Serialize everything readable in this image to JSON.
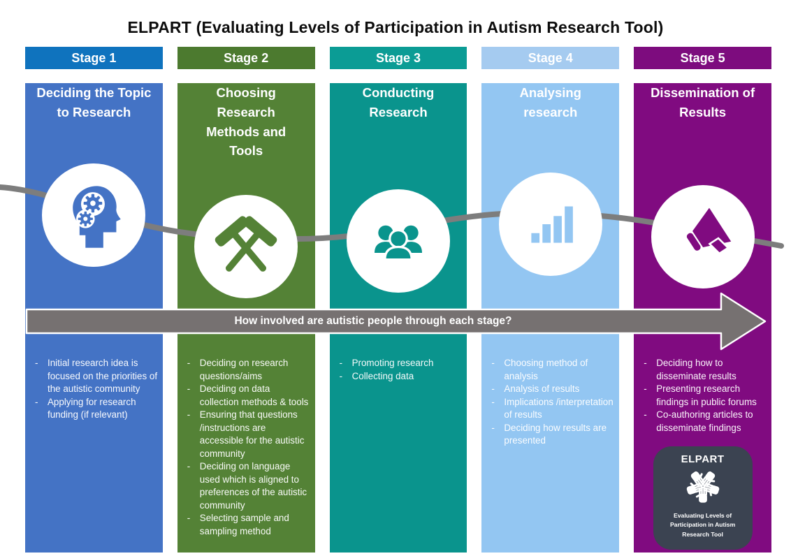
{
  "title": "ELPART (Evaluating Levels of Participation in Autism Research Tool)",
  "arrow": {
    "label": "How involved are autistic people through each stage?"
  },
  "stages": [
    {
      "label": "Stage 1",
      "title": "Deciding the Topic to Research",
      "icon": "head-gears-icon",
      "bullets": [
        "Initial research idea is focused on the priorities of the autistic community",
        "Applying for research funding (if relevant)"
      ]
    },
    {
      "label": "Stage 2",
      "title": "Choosing Research Methods and Tools",
      "icon": "crossed-hammers-icon",
      "bullets": [
        "Deciding on research questions/aims",
        "Deciding on data collection methods & tools",
        "Ensuring that questions /instructions are accessible for the autistic community",
        "Deciding on language used which is aligned to preferences of the autistic community",
        "Selecting sample and sampling method"
      ]
    },
    {
      "label": "Stage 3",
      "title": "Conducting Research",
      "icon": "people-group-icon",
      "bullets": [
        "Promoting research",
        "Collecting data"
      ]
    },
    {
      "label": "Stage 4",
      "title": "Analysing research",
      "icon": "bar-chart-icon",
      "bullets": [
        "Choosing method of analysis",
        "Analysis of results",
        "Implications /interpretation of results",
        "Deciding how results are presented"
      ]
    },
    {
      "label": "Stage 5",
      "title": "Dissemination of Results",
      "icon": "megaphone-icon",
      "bullets": [
        "Deciding how to disseminate results",
        "Presenting research findings in public forums",
        "Co-authoring articles to disseminate findings"
      ]
    }
  ],
  "logo": {
    "title": "ELPART",
    "caption": "Evaluating Levels of Participation in Autism Research Tool",
    "icon": "five-hands-icon"
  },
  "colors": {
    "stage1-header": "#0F73BE",
    "stage1-body": "#4473C5",
    "stage2-header": "#4C7A2F",
    "stage2-body": "#548236",
    "stage3-header": "#0B9C95",
    "stage3-body": "#0A948D",
    "stage4-header": "#A5CBF0",
    "stage4-body": "#93C6F2",
    "stage5-header": "#7D0C7E",
    "stage5-body": "#800B80",
    "arrow-fill": "#767171",
    "connector": "#7D7D7D",
    "logo-bg": "#3B4351"
  }
}
